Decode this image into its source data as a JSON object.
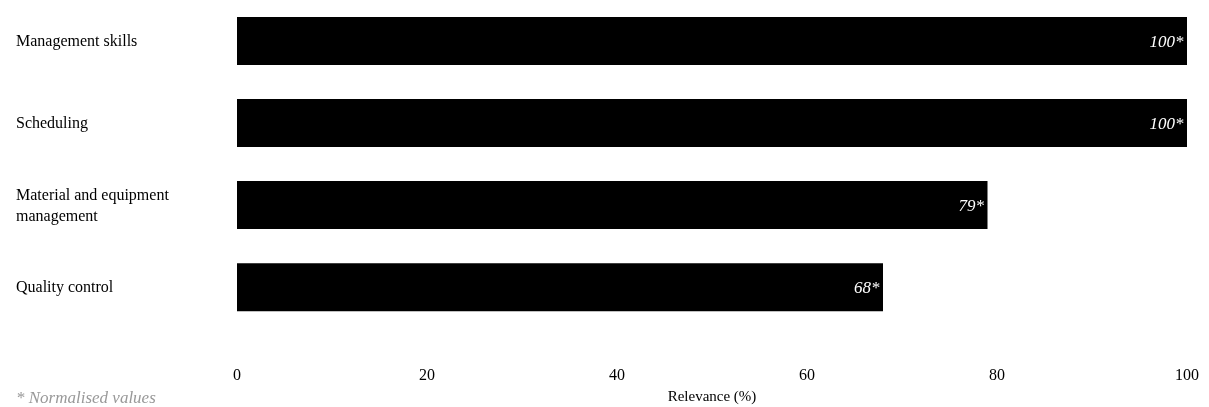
{
  "chart_data": {
    "type": "bar",
    "orientation": "horizontal",
    "categories": [
      "Management skills",
      "Scheduling",
      "Material and equipment management",
      "Quality control"
    ],
    "values": [
      100,
      100,
      79,
      68
    ],
    "value_labels": [
      "100*",
      "100*",
      "79*",
      "68*"
    ],
    "color": "#000000",
    "xlim": [
      0,
      100
    ],
    "xticks": [
      0,
      20,
      40,
      60,
      80,
      100
    ],
    "xlabel": "Relevance (%)",
    "annotations": [
      "* Normalised values"
    ]
  }
}
